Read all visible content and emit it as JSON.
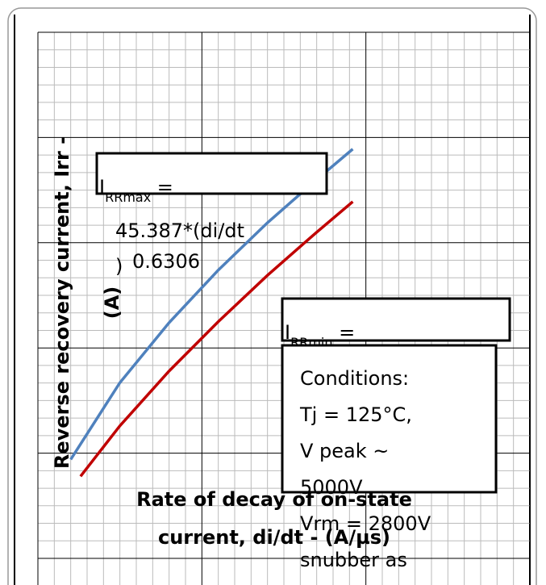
{
  "chart_data": {
    "type": "line",
    "ylabel": [
      "Reverse recovery current, Irr  -",
      "(A)"
    ],
    "xlabel": [
      "Rate of decay of on-state",
      "current, di/dt - (A/µs)"
    ],
    "xlim": [
      0,
      3
    ],
    "ylim": [
      0,
      5
    ],
    "xticks": [
      0,
      1,
      2,
      3
    ],
    "yticks": [
      0,
      1,
      2,
      3,
      4,
      5
    ],
    "grid": true,
    "series": [
      {
        "color": "#4f81bd",
        "x": [
          0.2,
          0.5,
          0.8,
          1.1,
          1.4,
          1.7,
          1.92
        ],
        "values": [
          0.94,
          1.67,
          2.24,
          2.74,
          3.19,
          3.6,
          3.89
        ]
      },
      {
        "color": "#c00000",
        "x": [
          0.26,
          0.5,
          0.8,
          1.1,
          1.4,
          1.7,
          1.92
        ],
        "values": [
          0.78,
          1.26,
          1.78,
          2.25,
          2.69,
          3.1,
          3.39
        ]
      }
    ],
    "annotations": [
      {
        "main": "I",
        "sub": "RRmax",
        "rest": " =",
        "formula": "45.387*(di/dt",
        "close": ")",
        "exponent": "0.6306"
      },
      {
        "main": "I",
        "sub": "RRmin",
        "rest": " ="
      },
      {
        "lines": [
          "Conditions:",
          "Tj = 125°C,",
          "V peak ~",
          "5000V",
          "Vrm = 2800V",
          "snubber as"
        ]
      }
    ]
  }
}
